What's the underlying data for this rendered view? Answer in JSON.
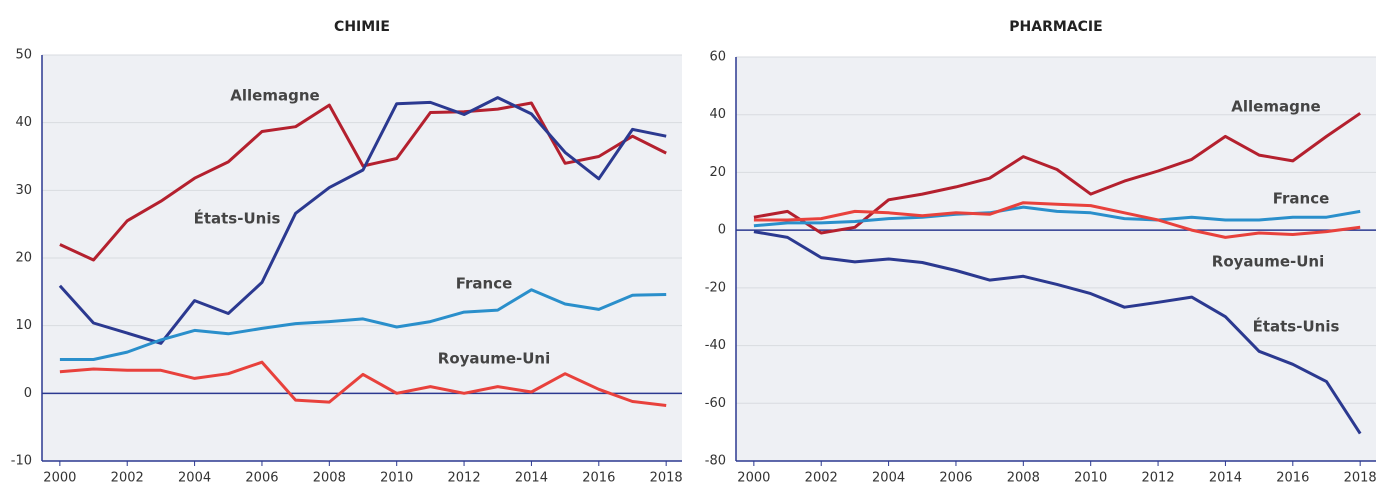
{
  "chart_data": [
    {
      "type": "line",
      "title": "CHIMIE",
      "x": [
        2000,
        2001,
        2002,
        2003,
        2004,
        2005,
        2006,
        2007,
        2008,
        2009,
        2010,
        2011,
        2012,
        2013,
        2014,
        2015,
        2016,
        2017,
        2018
      ],
      "series": [
        {
          "name": "Allemagne",
          "color": "#b4202e",
          "values": [
            22,
            19.7,
            25.5,
            28.4,
            31.8,
            34.2,
            38.7,
            39.4,
            42.6,
            33.6,
            34.7,
            41.5,
            41.6,
            42,
            42.9,
            34,
            35,
            38,
            35.5
          ]
        },
        {
          "name": "États-Unis",
          "color": "#2b3990",
          "values": [
            15.9,
            10.4,
            8.9,
            7.4,
            13.7,
            11.8,
            16.4,
            26.6,
            30.4,
            33,
            42.8,
            43,
            41.2,
            43.7,
            41.3,
            35.6,
            31.7,
            39,
            38
          ]
        },
        {
          "name": "France",
          "color": "#2a8fcb",
          "values": [
            5,
            5,
            6.1,
            7.9,
            9.3,
            8.8,
            9.6,
            10.3,
            10.6,
            11,
            9.8,
            10.6,
            12,
            12.3,
            15.3,
            13.2,
            12.4,
            14.5,
            14.6
          ]
        },
        {
          "name": "Royaume-Uni",
          "color": "#e8413c",
          "values": [
            3.2,
            3.6,
            3.4,
            3.4,
            2.2,
            2.9,
            4.6,
            -1,
            -1.3,
            2.8,
            0,
            1,
            0,
            1,
            0.2,
            2.9,
            0.6,
            -1.2,
            -1.8
          ]
        }
      ],
      "xlim": [
        1999.47,
        2018.47
      ],
      "xticks": [
        2000,
        2002,
        2004,
        2006,
        2008,
        2010,
        2012,
        2014,
        2016,
        2018
      ],
      "ylim": [
        -10,
        50
      ],
      "yticks": [
        -10,
        0,
        10,
        20,
        30,
        40,
        50
      ],
      "grid": true
    },
    {
      "type": "line",
      "title": "PHARMACIE",
      "x": [
        2000,
        2001,
        2002,
        2003,
        2004,
        2005,
        2006,
        2007,
        2008,
        2009,
        2010,
        2011,
        2012,
        2013,
        2014,
        2015,
        2016,
        2017,
        2018
      ],
      "series": [
        {
          "name": "Allemagne",
          "color": "#b4202e",
          "values": [
            4.5,
            6.5,
            -1,
            1,
            10.5,
            12.5,
            15,
            18,
            25.5,
            21,
            12.5,
            17,
            20.5,
            24.5,
            32.5,
            26,
            24,
            32.5,
            40.5
          ]
        },
        {
          "name": "France",
          "color": "#2a8fcb",
          "values": [
            1.5,
            2.5,
            2.5,
            3,
            4,
            4.5,
            5.5,
            6,
            8,
            6.5,
            6,
            4,
            3.5,
            4.5,
            3.5,
            3.5,
            4.5,
            4.5,
            6.5
          ]
        },
        {
          "name": "Royaume-Uni",
          "color": "#e8413c",
          "values": [
            3.5,
            3.5,
            4,
            6.5,
            6,
            5,
            6,
            5.5,
            9.5,
            9,
            8.5,
            6,
            3.5,
            0,
            -2.5,
            -1,
            -1.5,
            -0.5,
            1
          ]
        },
        {
          "name": "États-Unis",
          "color": "#2b3990",
          "values": [
            -0.5,
            -2.5,
            -9.5,
            -11,
            -10,
            -11.2,
            -14,
            -17.3,
            -16,
            -18.8,
            -22,
            -26.7,
            -25,
            -23.2,
            -30,
            -42,
            -46.5,
            -52.5,
            -70.5
          ]
        }
      ],
      "xlim": [
        1999.47,
        2018.47
      ],
      "xticks": [
        2000,
        2002,
        2004,
        2006,
        2008,
        2010,
        2012,
        2014,
        2016,
        2018
      ],
      "ylim": [
        -80,
        60
      ],
      "yticks": [
        -80,
        -60,
        -40,
        -20,
        0,
        20,
        40,
        60
      ],
      "grid": true
    }
  ]
}
